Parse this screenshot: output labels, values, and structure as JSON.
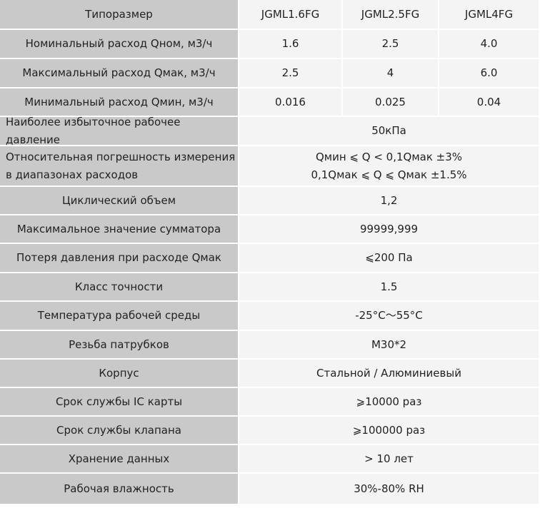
{
  "table": {
    "header": [
      "Типоразмер",
      "JGML1.6FG",
      "JGML2.5FG",
      "JGML4FG"
    ],
    "rows": [
      [
        "Номинальный расход Qном, м3/ч",
        "1.6",
        "2.5",
        "4.0"
      ],
      [
        "Максимальный расход Qмак, м3/ч",
        "2.5",
        "4",
        "6.0"
      ],
      [
        "Минимальный расход Qмин, м3/ч",
        "0.016",
        "0.025",
        "0.04"
      ],
      [
        "Наиболее избыточное рабочее давление",
        "50кПа"
      ],
      [
        [
          "Относительная погрешность измерения",
          "в диапазонах расходов"
        ],
        [
          "Qмин ⩽ Q < 0,1Qмак ±3%",
          "0,1Qмак ⩽ Q ⩽ Qмак  ±1.5%"
        ]
      ],
      [
        "Циклический объем",
        "1,2"
      ],
      [
        "Максимальное значение сумматора",
        "99999,999"
      ],
      [
        "Потеря давления при расходе Qмак",
        "⩽200 Па"
      ],
      [
        "Класс точности",
        "1.5"
      ],
      [
        "Температура рабочей среды",
        "-25°C～55°C"
      ],
      [
        "Резьба патрубков",
        "M30*2"
      ],
      [
        "Корпус",
        "Стальной / Алюминиевый"
      ],
      [
        "Срок службы IC карты",
        "⩾10000 раз"
      ],
      [
        "Срок службы клапана",
        "⩾100000 раз"
      ],
      [
        "Хранение данных",
        "> 10 лет"
      ],
      [
        "Рабочая влажность",
        "30%-80% RH"
      ]
    ]
  }
}
